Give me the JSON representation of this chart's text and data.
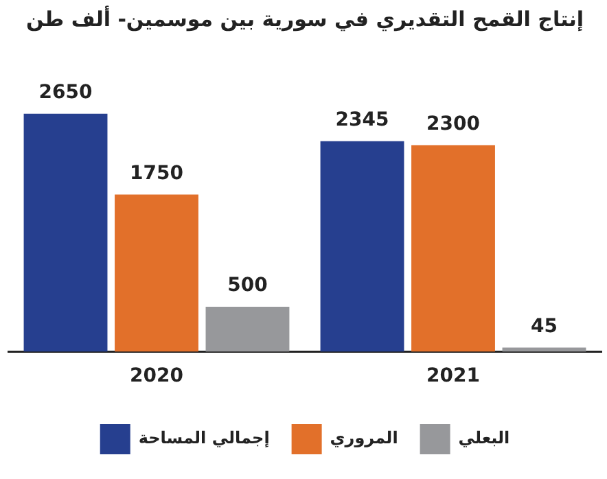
{
  "chart_data": {
    "type": "bar",
    "title": "إنتاج القمح التقديري في سورية بين موسمين- ألف طن",
    "categories": [
      "2020",
      "2021"
    ],
    "series": [
      {
        "name": "إجمالي المساحة",
        "color": "#263f8f",
        "values": [
          2650,
          2345
        ]
      },
      {
        "name": "المروري",
        "color": "#e2702a",
        "values": [
          1750,
          2300
        ]
      },
      {
        "name": "البعلي",
        "color": "#97989b",
        "values": [
          500,
          45
        ]
      }
    ],
    "data_labels": true,
    "legend": "bottom",
    "grid": false
  }
}
